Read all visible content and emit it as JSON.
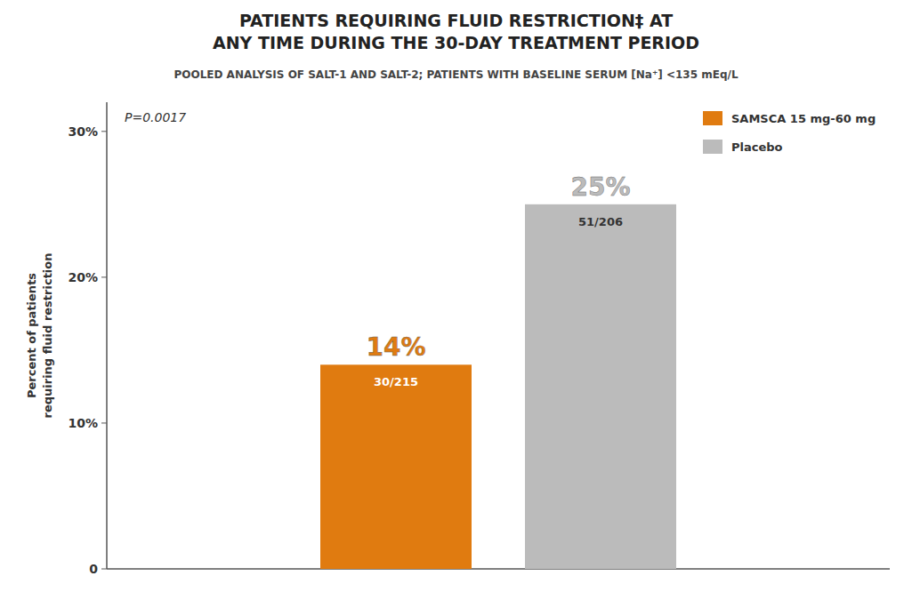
{
  "chart_data": {
    "type": "bar",
    "title": "PATIENTS REQUIRING FLUID RESTRICTION‡ AT\nANY TIME DURING THE 30-DAY TREATMENT PERIOD",
    "subtitle": "POOLED ANALYSIS OF SALT-1 AND SALT-2; PATIENTS WITH BASELINE SERUM [Na⁺] <135 mEq/L",
    "ylabel": "Percent of patients\nrequiring fluid restriction",
    "categories": [
      null
    ],
    "series": [
      {
        "name": "SAMSCA 15 mg-60 mg",
        "color": "#E07B10",
        "values": [
          14
        ],
        "value_labels": [
          "14%"
        ]
      },
      {
        "name": "Placebo",
        "color": "#BBBBBB",
        "values": [
          25
        ],
        "value_labels": [
          "25%"
        ]
      }
    ],
    "annotations": [
      {
        "text": "P=0.0017"
      },
      {
        "text": "30/215",
        "series": 0
      },
      {
        "text": "51/206",
        "series": 1
      }
    ],
    "ylim": [
      0,
      32
    ],
    "yticks": [
      0,
      {
        "value": 10,
        "label": "10%"
      },
      {
        "value": 20,
        "label": "20%"
      },
      {
        "value": 30,
        "label": "30%"
      }
    ],
    "grid": false,
    "legend": "upper right",
    "data_labels": true,
    "tick_labels": "y"
  }
}
